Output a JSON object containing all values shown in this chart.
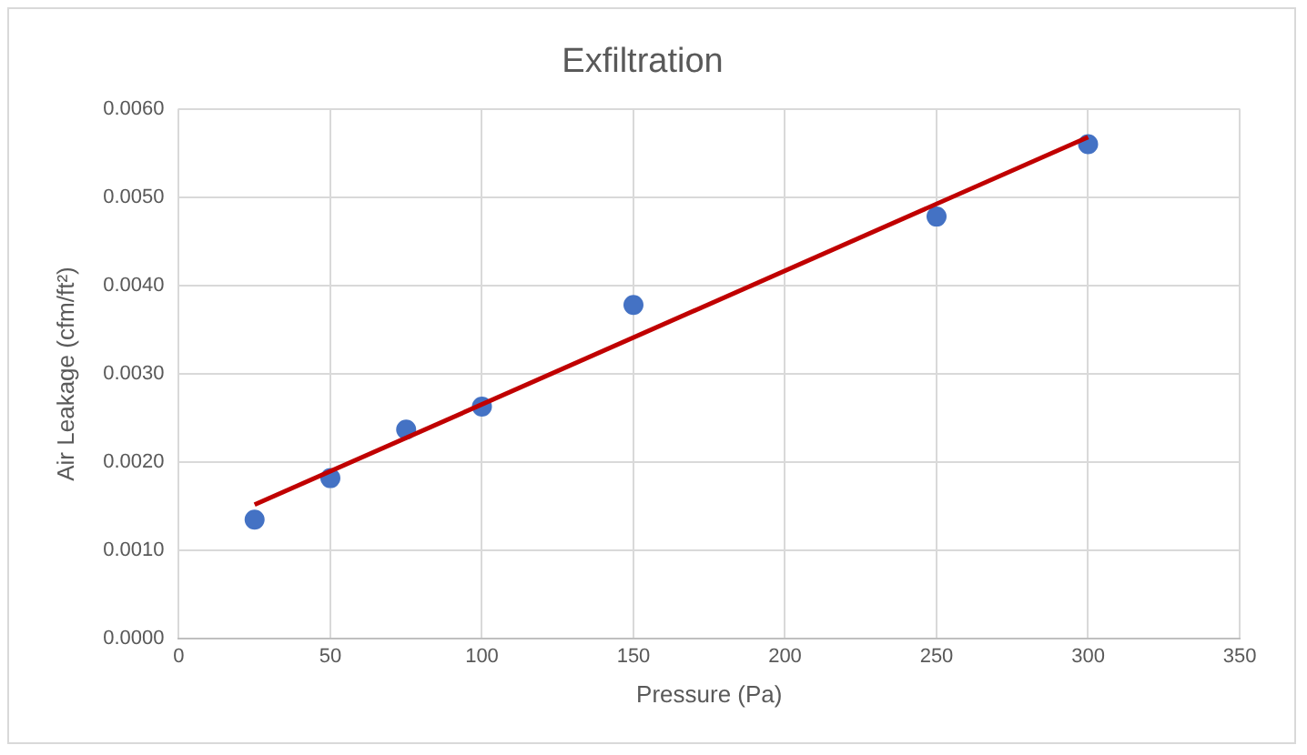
{
  "chart_data": {
    "type": "scatter",
    "title": "Exfiltration",
    "xlabel": "Pressure (Pa)",
    "ylabel": "Air Leakage (cfm/ft²)",
    "series": [
      {
        "type": "scatter",
        "marker": "circle",
        "color": "#4472c4",
        "x": [
          25,
          50,
          75,
          100,
          150,
          250,
          300
        ],
        "values": [
          0.00135,
          0.00182,
          0.00237,
          0.00263,
          0.00378,
          0.00478,
          0.0056
        ]
      },
      {
        "type": "line",
        "marker": "none",
        "color": "#c00000",
        "x": [
          25,
          300
        ],
        "values": [
          0.00152,
          0.00568
        ]
      }
    ],
    "grid": true,
    "legend": false,
    "xlim": [
      0,
      350
    ],
    "xticks": [
      0,
      50,
      100,
      150,
      200,
      250,
      300,
      350
    ],
    "ylim": [
      0,
      0.006
    ],
    "yticks": [
      {
        "value": 0,
        "label": "0.0000"
      },
      {
        "value": 0.001,
        "label": "0.0010"
      },
      {
        "value": 0.002,
        "label": "0.0020"
      },
      {
        "value": 0.003,
        "label": "0.0030"
      },
      {
        "value": 0.004,
        "label": "0.0040"
      },
      {
        "value": 0.005,
        "label": "0.0050"
      },
      {
        "value": 0.006,
        "label": "0.0060"
      }
    ]
  }
}
